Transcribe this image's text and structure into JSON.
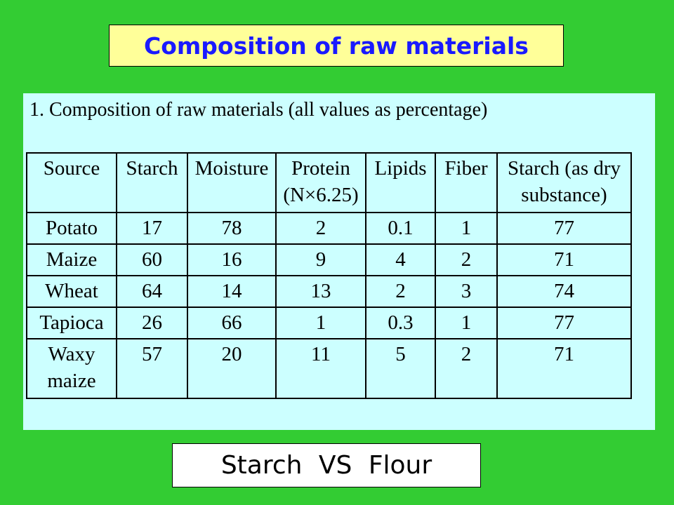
{
  "title": "Composition of raw materials",
  "panel": {
    "subtitle": "1. Composition of raw materials (all values as percentage)",
    "table": {
      "header": [
        "Source",
        "Starch",
        "Moisture",
        "Protein (N×6.25)",
        "Lipids",
        "Fiber",
        "Starch (as dry substance)"
      ],
      "rows": [
        [
          "Potato",
          17,
          78,
          2,
          0.1,
          1,
          77
        ],
        [
          "Maize",
          60,
          16,
          9,
          4,
          2,
          71
        ],
        [
          "Wheat",
          64,
          14,
          13,
          2,
          3,
          74
        ],
        [
          "Tapioca",
          26,
          66,
          1,
          0.3,
          1,
          77
        ],
        [
          "Waxy maize",
          57,
          20,
          11,
          5,
          2,
          71
        ]
      ]
    }
  },
  "footer": "Starch VS Flour"
}
